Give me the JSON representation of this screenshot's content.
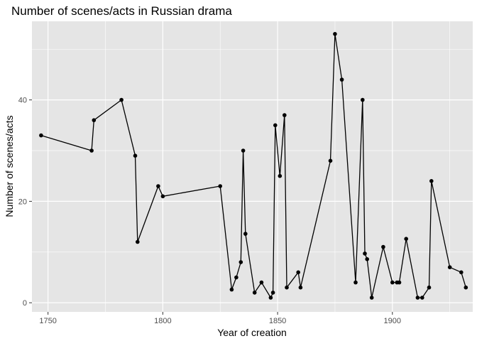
{
  "chart_data": {
    "type": "line",
    "title": "Number of scenes/acts in Russian drama",
    "xlabel": "Year of creation",
    "ylabel": "Number of scenes/acts",
    "xlim": [
      1743,
      1935
    ],
    "ylim": [
      -1.8,
      55.5
    ],
    "xticks": [
      1750,
      1800,
      1850,
      1900
    ],
    "xticks_minor": [
      1775,
      1825,
      1875,
      1925
    ],
    "yticks": [
      0,
      20,
      40
    ],
    "yticks_minor": [
      10,
      30,
      50
    ],
    "grid": true,
    "legend": "none",
    "colors": {
      "panel": "#e5e5e5",
      "grid": "#ffffff",
      "line": "#000000",
      "tick_text": "#4d4d4d"
    },
    "series": [
      {
        "points": [
          [
            1747,
            33
          ],
          [
            1769,
            30
          ],
          [
            1770,
            36
          ],
          [
            1782,
            40
          ],
          [
            1788,
            29
          ],
          [
            1789,
            12
          ],
          [
            1798,
            23
          ],
          [
            1800,
            21
          ],
          [
            1825,
            23
          ],
          [
            1830,
            2.6
          ],
          [
            1832,
            5
          ],
          [
            1834,
            8
          ],
          [
            1835,
            30
          ],
          [
            1836,
            13.6
          ],
          [
            1840,
            2
          ],
          [
            1843,
            4
          ],
          [
            1847,
            1
          ],
          [
            1848,
            2
          ],
          [
            1849,
            35
          ],
          [
            1851,
            25
          ],
          [
            1853,
            37
          ],
          [
            1854,
            3
          ],
          [
            1859,
            6
          ],
          [
            1860,
            3
          ],
          [
            1873,
            28
          ],
          [
            1875,
            53
          ],
          [
            1878,
            44
          ],
          [
            1884,
            4
          ],
          [
            1887,
            40
          ],
          [
            1888,
            9.7
          ],
          [
            1889,
            8.6
          ],
          [
            1891,
            1
          ],
          [
            1896,
            11
          ],
          [
            1900,
            4
          ],
          [
            1902,
            4
          ],
          [
            1903,
            4
          ],
          [
            1906,
            12.6
          ],
          [
            1911,
            1
          ],
          [
            1913,
            1
          ],
          [
            1916,
            3
          ],
          [
            1917,
            24
          ],
          [
            1925,
            7
          ],
          [
            1930,
            6
          ],
          [
            1932,
            3
          ]
        ]
      }
    ]
  }
}
